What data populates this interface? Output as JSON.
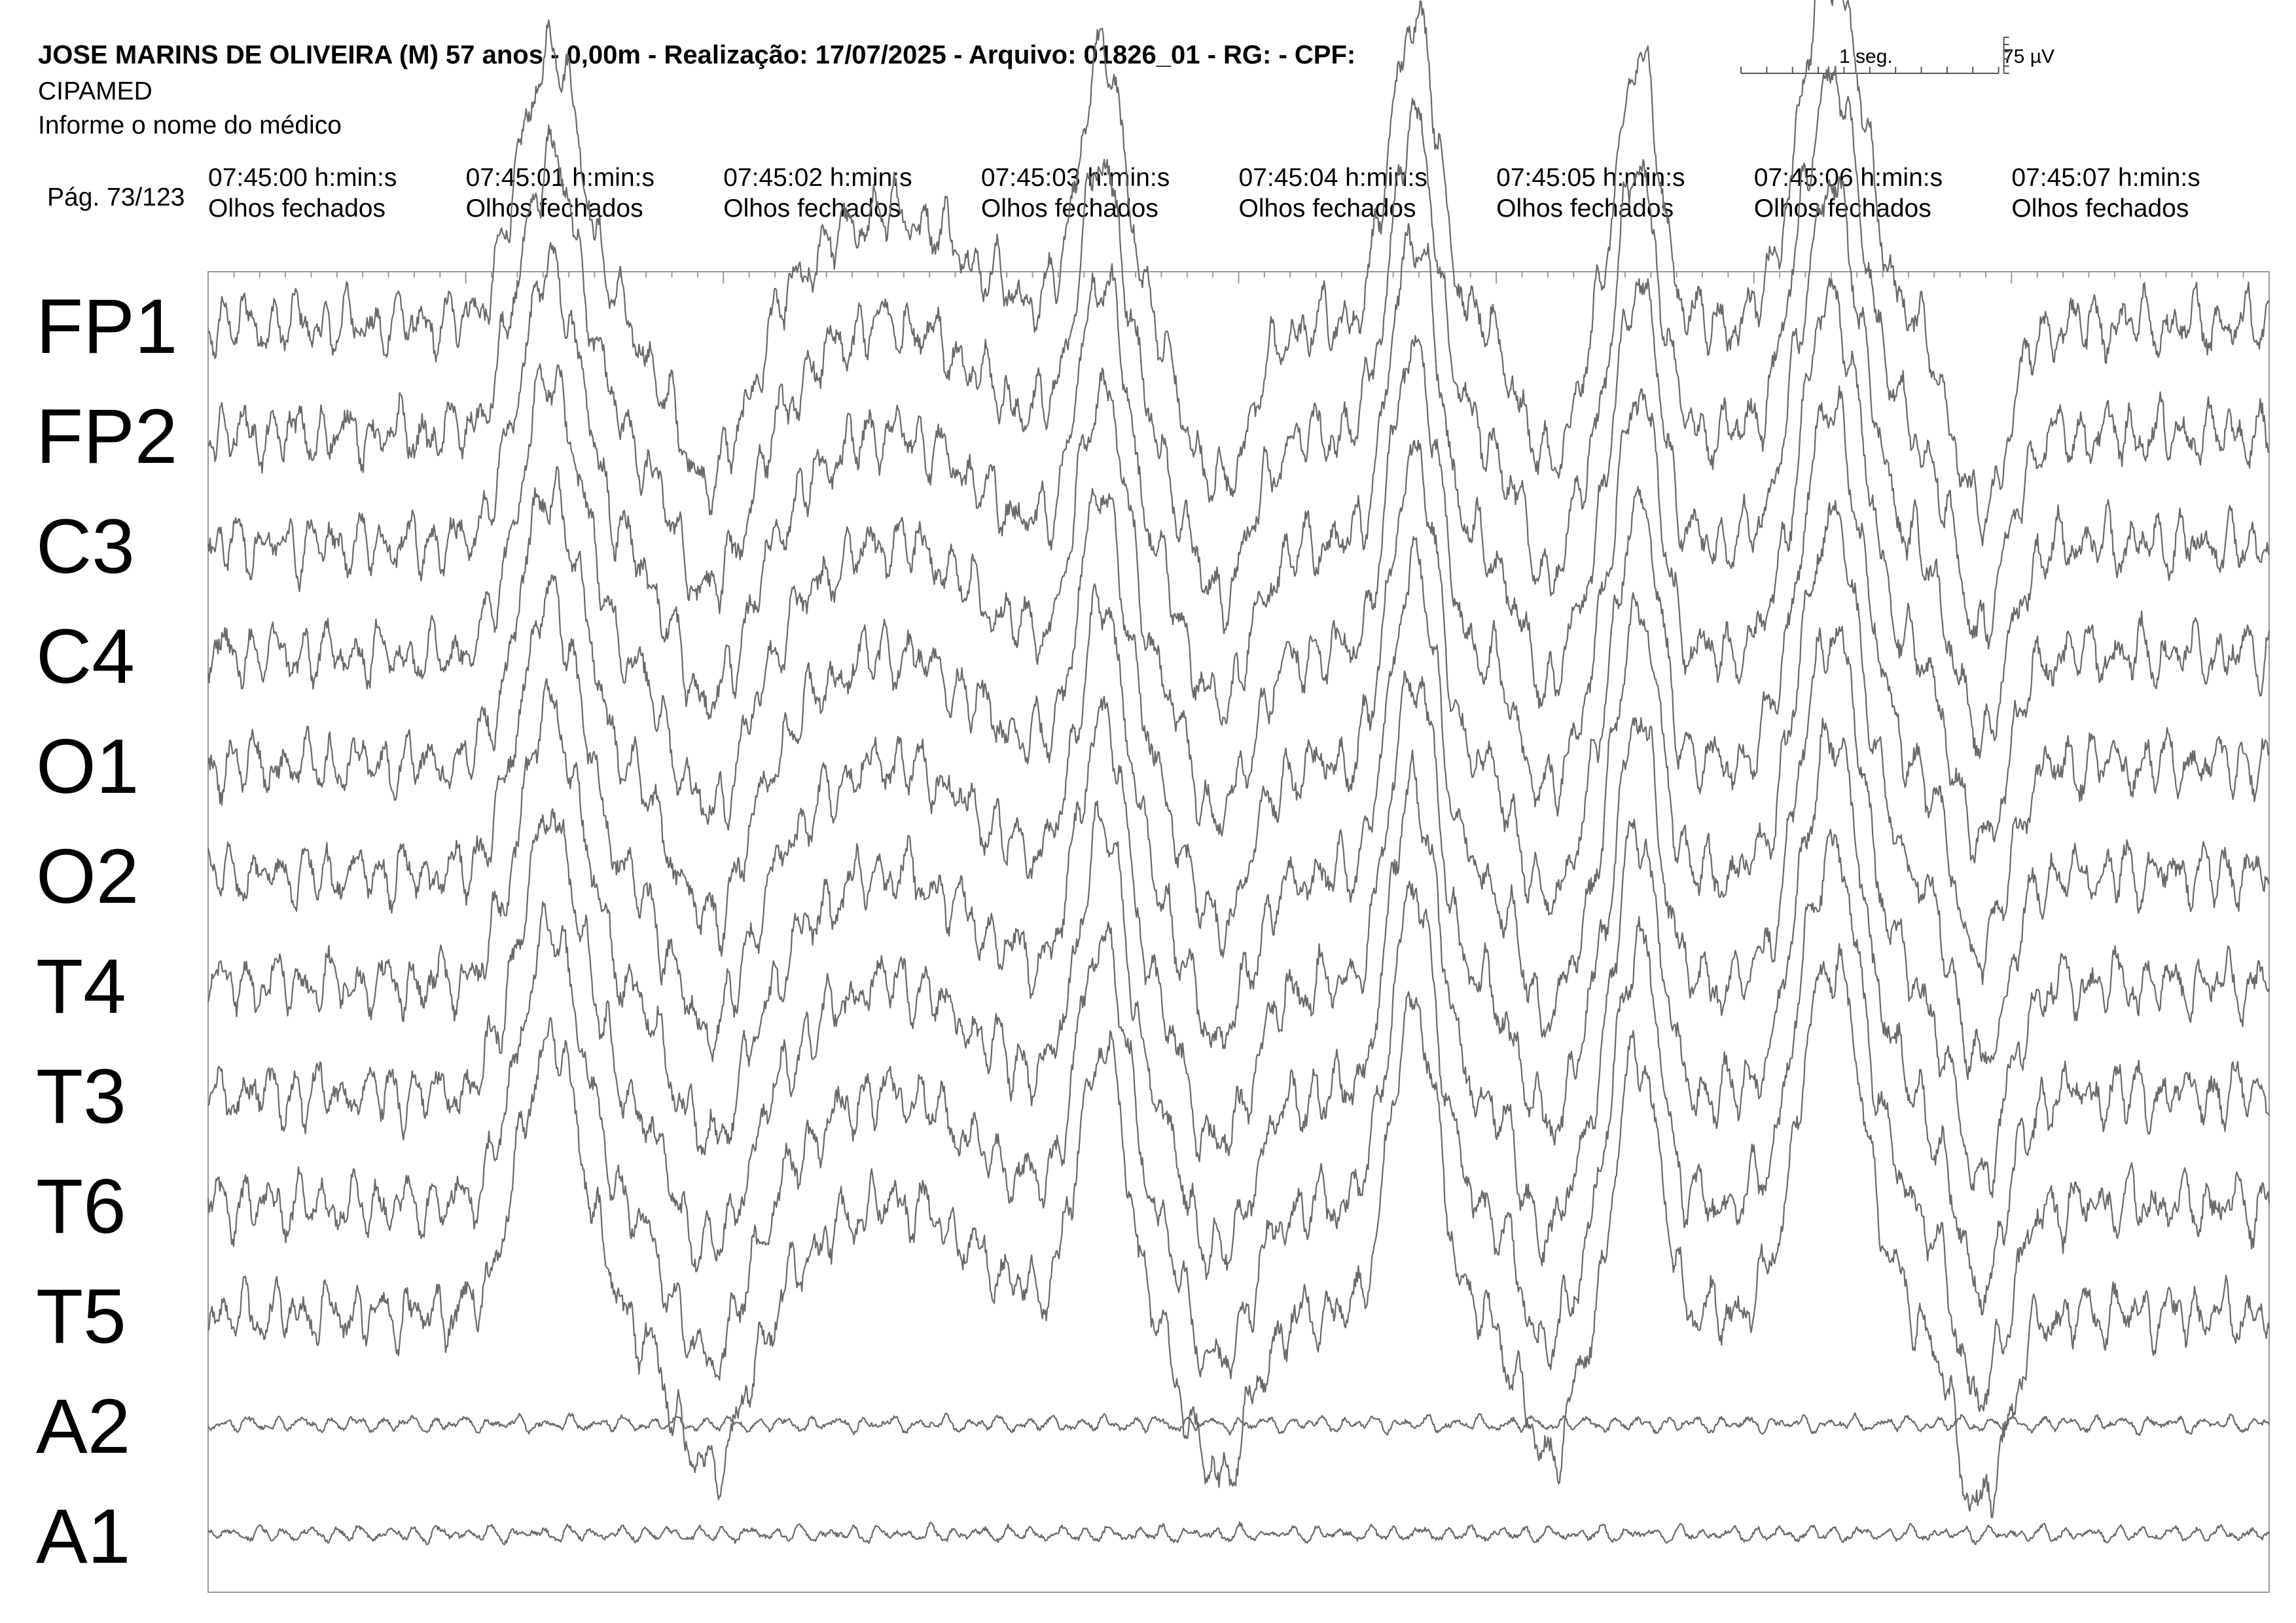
{
  "header": {
    "patient_line": "JOSE MARINS DE OLIVEIRA (M) 57 anos - 0,00m - Realização: 17/07/2025 - Arquivo: 01826_01 - RG:  - CPF:",
    "clinic": "CIPAMED",
    "doctor": "Informe o nome do médico",
    "page": "Pág. 73/123"
  },
  "scale": {
    "time_label": "1 seg.",
    "amplitude_label": "75 µV"
  },
  "chart_data": {
    "type": "line",
    "title": "",
    "x_unit": "s",
    "xlim": [
      0,
      8
    ],
    "time_marks": [
      {
        "time": "07:45:00 h:min:s",
        "state": "Olhos fechados"
      },
      {
        "time": "07:45:01 h:min:s",
        "state": "Olhos fechados"
      },
      {
        "time": "07:45:02 h:min:s",
        "state": "Olhos fechados"
      },
      {
        "time": "07:45:03 h:min:s",
        "state": "Olhos fechados"
      },
      {
        "time": "07:45:04 h:min:s",
        "state": "Olhos fechados"
      },
      {
        "time": "07:45:05 h:min:s",
        "state": "Olhos fechados"
      },
      {
        "time": "07:45:06 h:min:s",
        "state": "Olhos fechados"
      },
      {
        "time": "07:45:07 h:min:s",
        "state": "Olhos fechados"
      }
    ],
    "channels": [
      "FP1",
      "FP2",
      "C3",
      "C4",
      "O1",
      "O2",
      "T4",
      "T3",
      "T6",
      "T5",
      "A2",
      "A1"
    ],
    "slow_wave_events": [
      {
        "t": 1.33,
        "uv": 185,
        "width_s": 0.12
      },
      {
        "t": 1.95,
        "uv": -110,
        "width_s": 0.14
      },
      {
        "t": 2.65,
        "uv": 75,
        "width_s": 0.3
      },
      {
        "t": 3.47,
        "uv": 180,
        "width_s": 0.09
      },
      {
        "t": 3.92,
        "uv": -110,
        "width_s": 0.12
      },
      {
        "t": 4.68,
        "uv": 210,
        "width_s": 0.09
      },
      {
        "t": 5.2,
        "uv": -95,
        "width_s": 0.1
      },
      {
        "t": 5.55,
        "uv": 180,
        "width_s": 0.08
      },
      {
        "t": 6.3,
        "uv": 240,
        "width_s": 0.12
      },
      {
        "t": 6.88,
        "uv": -130,
        "width_s": 0.1
      }
    ],
    "background_activity_uv": 12,
    "reference_channel_activity_uv": 3
  },
  "colors": {
    "trace": "#6a6a6a",
    "frame": "#9a9a9a",
    "text": "#000000"
  }
}
